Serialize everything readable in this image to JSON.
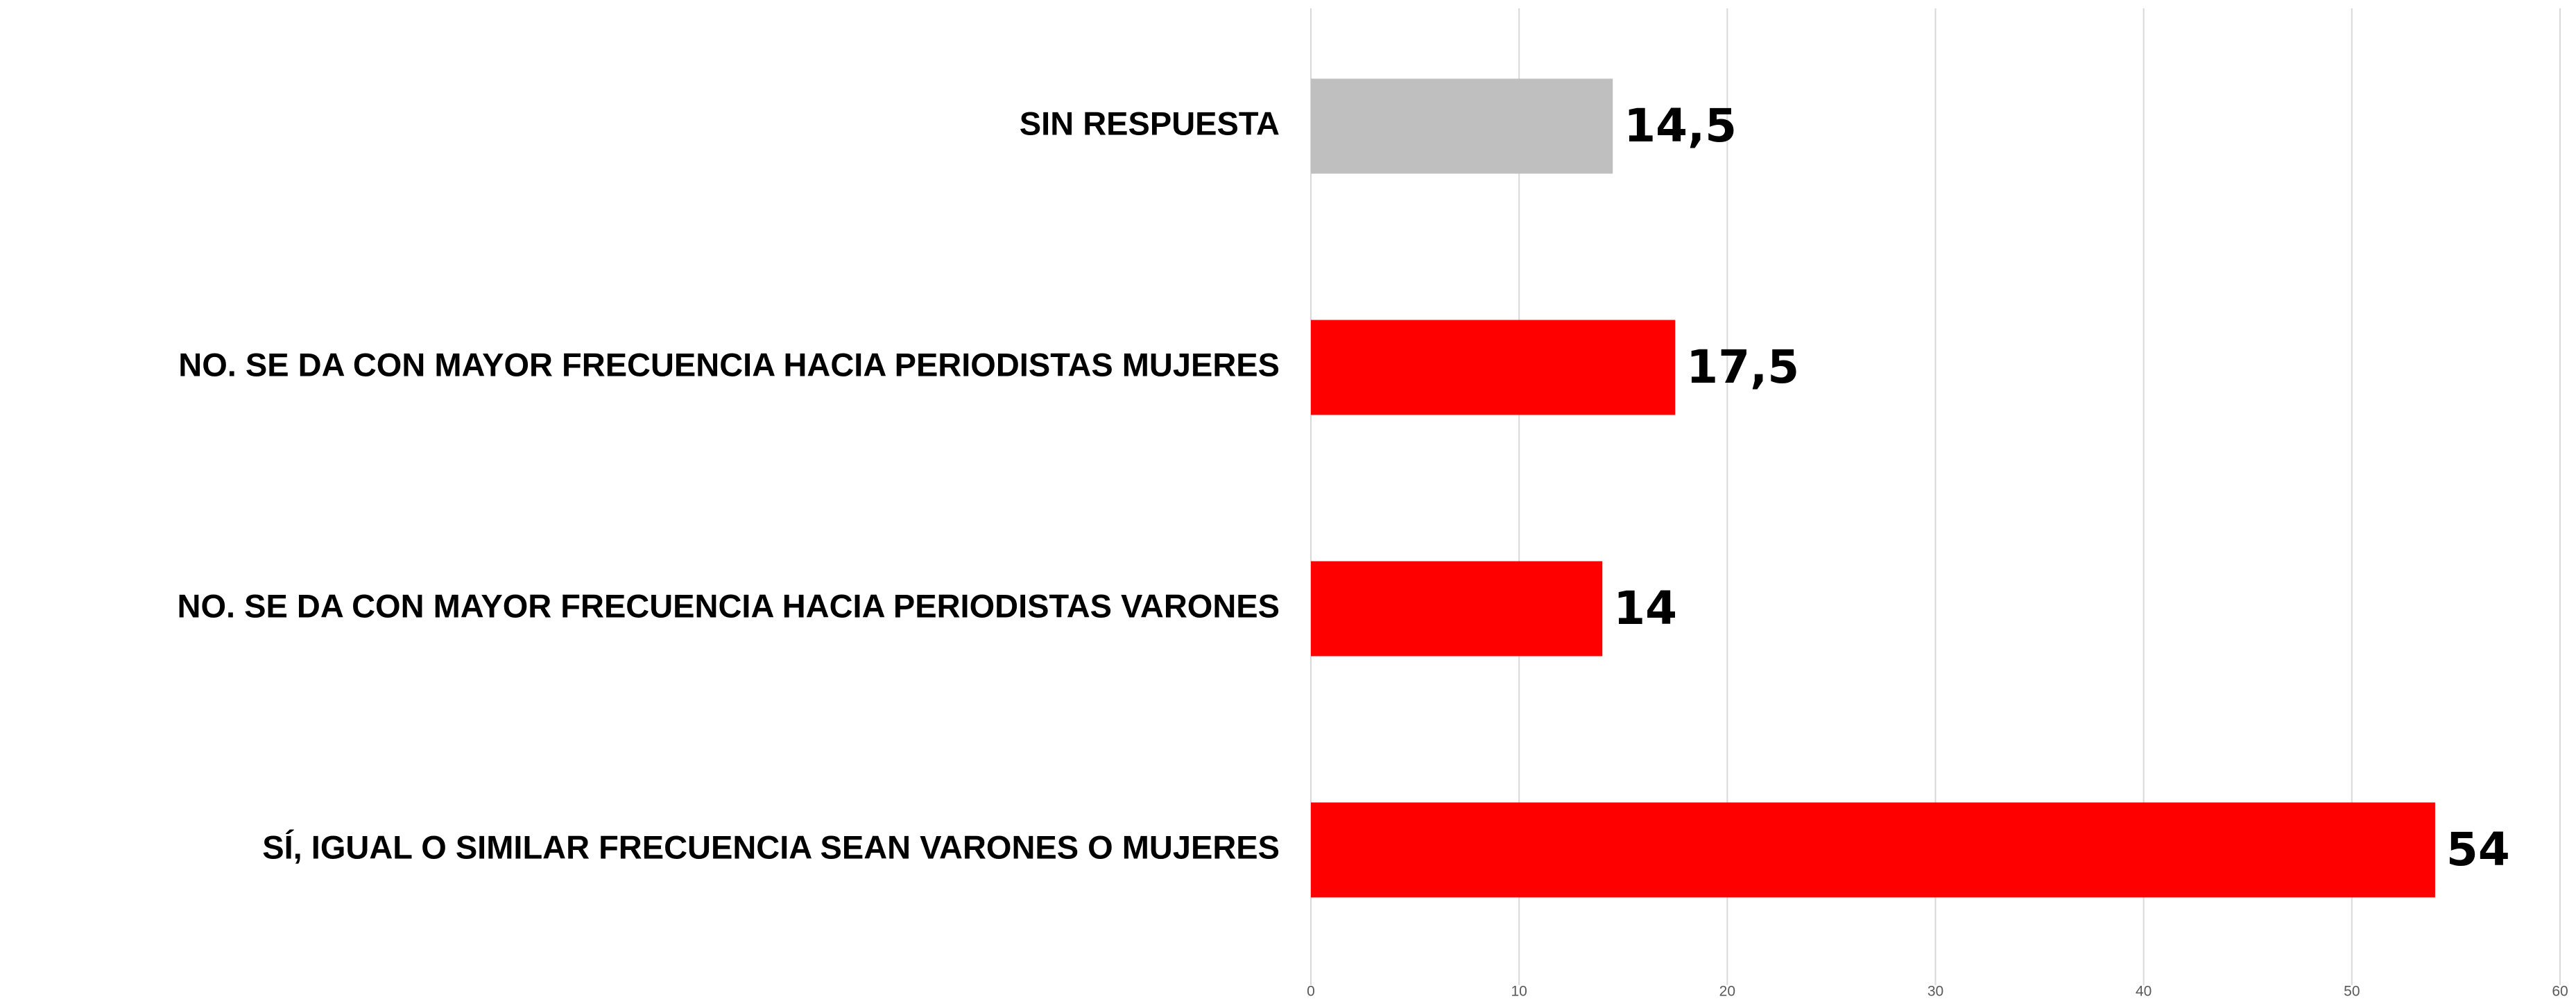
{
  "chart_data": {
    "type": "hbar",
    "categories": [
      "SIN RESPUESTA",
      "NO. SE DA CON MAYOR FRECUENCIA HACIA PERIODISTAS MUJERES",
      "NO. SE DA CON MAYOR FRECUENCIA HACIA PERIODISTAS VARONES",
      "SÍ, IGUAL O SIMILAR FRECUENCIA SEAN VARONES O MUJERES"
    ],
    "values": [
      14.5,
      17.5,
      14,
      54
    ],
    "value_labels": [
      "14,5",
      "17,5",
      "14",
      "54"
    ],
    "colors": [
      "#bfbfbf",
      "#ff0000",
      "#ff0000",
      "#ff0000"
    ],
    "xlim": [
      0,
      60
    ],
    "xticks": [
      0,
      10,
      20,
      30,
      40,
      50,
      60
    ],
    "grid": true
  }
}
